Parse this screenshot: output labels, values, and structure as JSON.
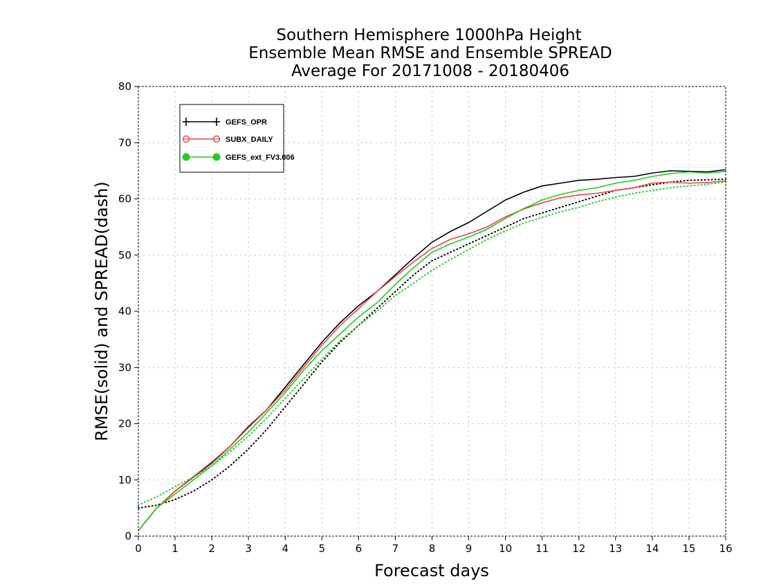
{
  "chart_data": {
    "type": "line",
    "title": [
      "Southern Hemisphere 1000hPa Height",
      "Ensemble Mean RMSE and Ensemble SPREAD",
      "Average For 20171008 - 20180406"
    ],
    "xlabel": "Forecast days",
    "ylabel": "RMSE(solid) and SPREAD(dash)",
    "xlim": [
      0,
      16
    ],
    "ylim": [
      0,
      80
    ],
    "xticks": [
      "0",
      "1",
      "2",
      "3",
      "4",
      "5",
      "6",
      "7",
      "8",
      "9",
      "10",
      "11",
      "12",
      "13",
      "14",
      "15",
      "16"
    ],
    "yticks": [
      "0",
      "10",
      "20",
      "30",
      "40",
      "50",
      "60",
      "70",
      "80"
    ],
    "grid": true,
    "legend_position": "top-left",
    "x": [
      0,
      0.5,
      1,
      1.5,
      2,
      2.5,
      3,
      3.5,
      4,
      4.5,
      5,
      5.5,
      6,
      6.5,
      7,
      7.5,
      8,
      8.5,
      9,
      9.5,
      10,
      10.5,
      11,
      11.5,
      12,
      12.5,
      13,
      13.5,
      14,
      14.5,
      15,
      15.5,
      16
    ],
    "series": [
      {
        "name": "GEFS_OPR",
        "color": "#000000",
        "marker": "plus",
        "rmse": [
          1.0,
          5.0,
          8.0,
          10.5,
          13.0,
          16.0,
          19.5,
          22.5,
          26.5,
          30.5,
          34.5,
          38.0,
          41.0,
          43.5,
          46.5,
          49.5,
          52.3,
          54.2,
          55.8,
          57.8,
          59.8,
          61.2,
          62.3,
          62.8,
          63.3,
          63.5,
          63.8,
          64.0,
          64.6,
          65.0,
          64.9,
          64.8,
          65.2
        ],
        "spread": [
          5.0,
          5.5,
          6.5,
          8.0,
          10.0,
          12.5,
          15.5,
          19.0,
          23.0,
          27.0,
          31.0,
          34.5,
          37.5,
          40.5,
          43.5,
          46.5,
          49.0,
          50.5,
          52.0,
          53.5,
          55.0,
          56.5,
          57.5,
          58.5,
          59.5,
          60.5,
          61.5,
          62.0,
          62.5,
          63.0,
          63.3,
          63.4,
          63.5
        ]
      },
      {
        "name": "SUBX_DAILY",
        "color": "#ee4444",
        "marker": "circle-open",
        "rmse": [
          1.0,
          5.0,
          8.0,
          10.6,
          13.2,
          16.0,
          19.3,
          22.5,
          26.0,
          30.0,
          34.0,
          37.5,
          40.5,
          43.5,
          46.2,
          48.8,
          51.2,
          52.8,
          53.8,
          55.0,
          56.8,
          58.2,
          59.3,
          60.2,
          60.7,
          61.0,
          61.5,
          62.0,
          62.8,
          63.0,
          62.8,
          62.9,
          63.2
        ]
      },
      {
        "name": "GEFS_ext_FV3.006",
        "color": "#22cc22",
        "marker": "circle-filled",
        "rmse": [
          1.0,
          5.0,
          7.5,
          10.0,
          12.5,
          15.5,
          18.5,
          22.0,
          25.5,
          29.5,
          33.0,
          36.0,
          39.0,
          41.5,
          44.8,
          47.8,
          50.5,
          52.0,
          53.2,
          54.6,
          56.5,
          58.3,
          59.8,
          60.8,
          61.5,
          62.0,
          62.8,
          63.3,
          64.0,
          64.5,
          64.8,
          64.6,
          64.9
        ],
        "spread": [
          5.5,
          7.0,
          8.8,
          10.5,
          12.5,
          15.0,
          17.8,
          21.0,
          24.5,
          28.0,
          31.5,
          34.8,
          37.5,
          40.0,
          42.8,
          45.0,
          47.3,
          49.2,
          51.0,
          52.8,
          54.3,
          55.7,
          56.7,
          57.7,
          58.5,
          59.5,
          60.3,
          61.0,
          61.5,
          62.0,
          62.3,
          62.6,
          63.0
        ]
      }
    ]
  }
}
